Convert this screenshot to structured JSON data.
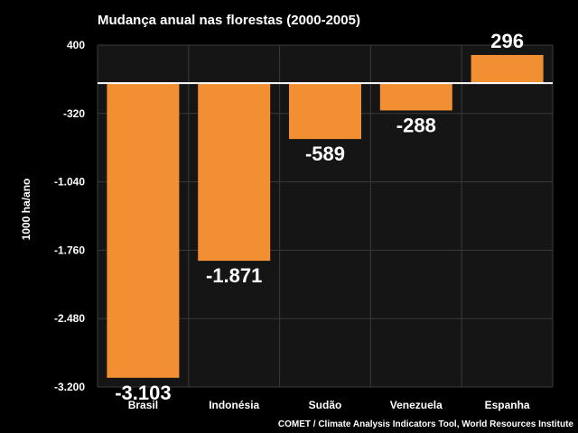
{
  "chart_data": {
    "type": "bar",
    "title": "Mudança anual nas florestas (2000-2005)",
    "ylabel": "1000 ha/ano",
    "xlabel": "",
    "categories": [
      "Brasil",
      "Indonésia",
      "Sudão",
      "Venezuela",
      "Espanha"
    ],
    "values": [
      -3103,
      -1871,
      -589,
      -288,
      296
    ],
    "value_labels": [
      "-3.103",
      "-1.871",
      "-589",
      "-288",
      "296"
    ],
    "ylim": [
      -3200,
      400
    ],
    "yticks": [
      400,
      -320,
      -1040,
      -1760,
      -2480,
      -3200
    ],
    "ytick_labels": [
      "400",
      "-320",
      "-1.040",
      "-1.760",
      "-2.480",
      "-3.200"
    ],
    "grid": true,
    "source": "COMET / Climate Analysis Indicators Tool, World Resources Institute",
    "colors": {
      "bar": "#F28F33",
      "background": "#000000",
      "plot_area": "#151515",
      "grid": "#3a3a3a",
      "zero_line": "#ffffff",
      "text": "#ffffff"
    }
  }
}
